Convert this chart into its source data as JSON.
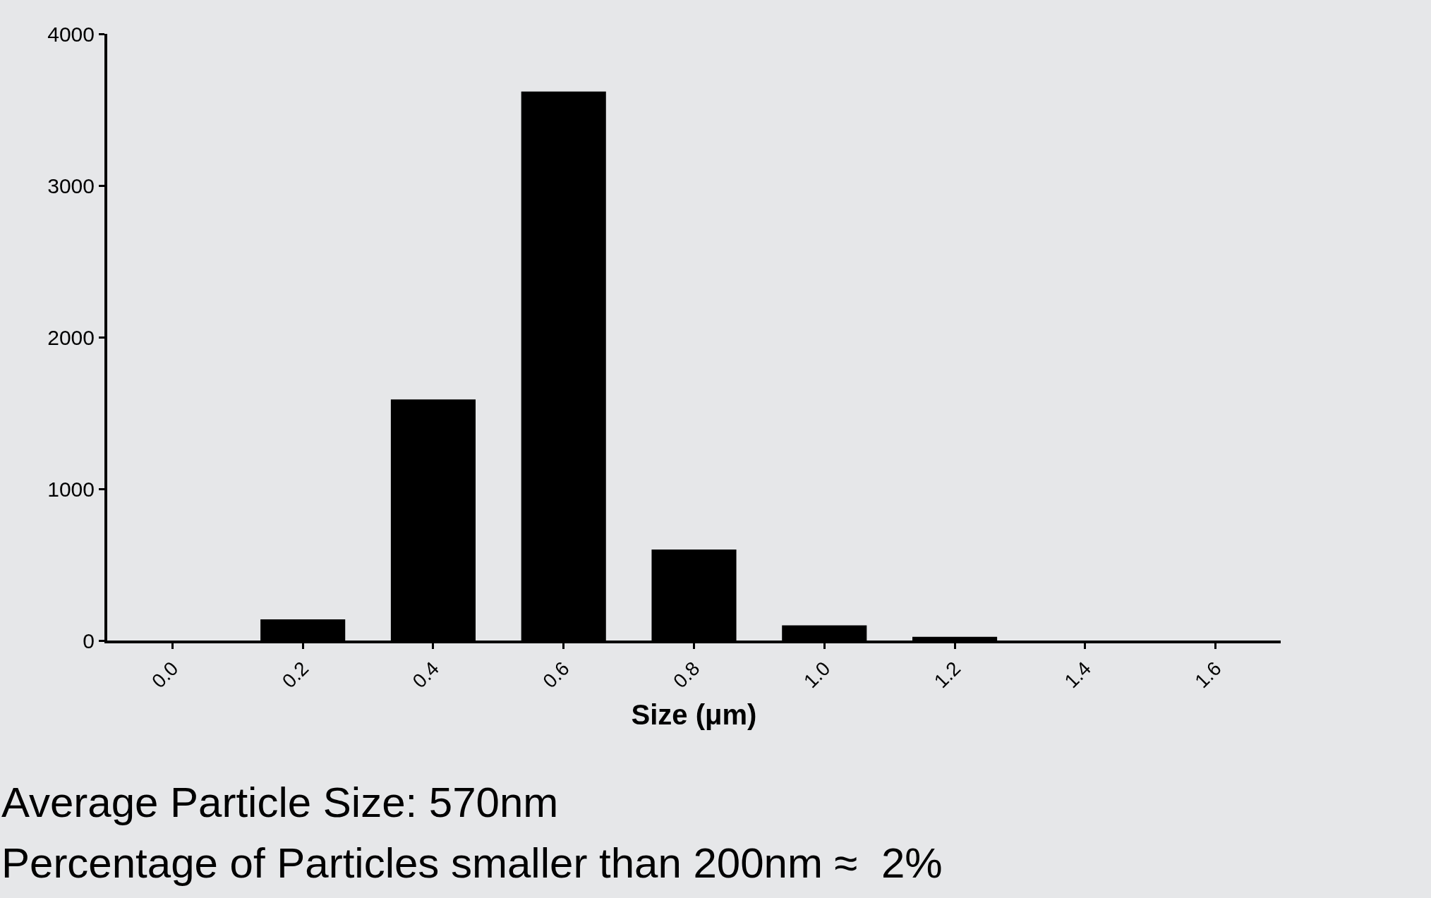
{
  "chart_data": {
    "type": "bar",
    "xlabel": "Size (μm)",
    "categories": [
      "0.0",
      "0.2",
      "0.4",
      "0.6",
      "0.8",
      "1.0",
      "1.2",
      "1.4",
      "1.6"
    ],
    "values": [
      0,
      140,
      1590,
      3620,
      600,
      100,
      25,
      0,
      0
    ],
    "color": "#000000",
    "ylim": [
      0,
      4000
    ],
    "yticks": [
      0,
      1000,
      2000,
      3000,
      4000
    ],
    "grid": false,
    "annotations": [
      "Average Particle Size: 570nm",
      "Percentage of Particles smaller than 200nm ≈  2%"
    ]
  }
}
